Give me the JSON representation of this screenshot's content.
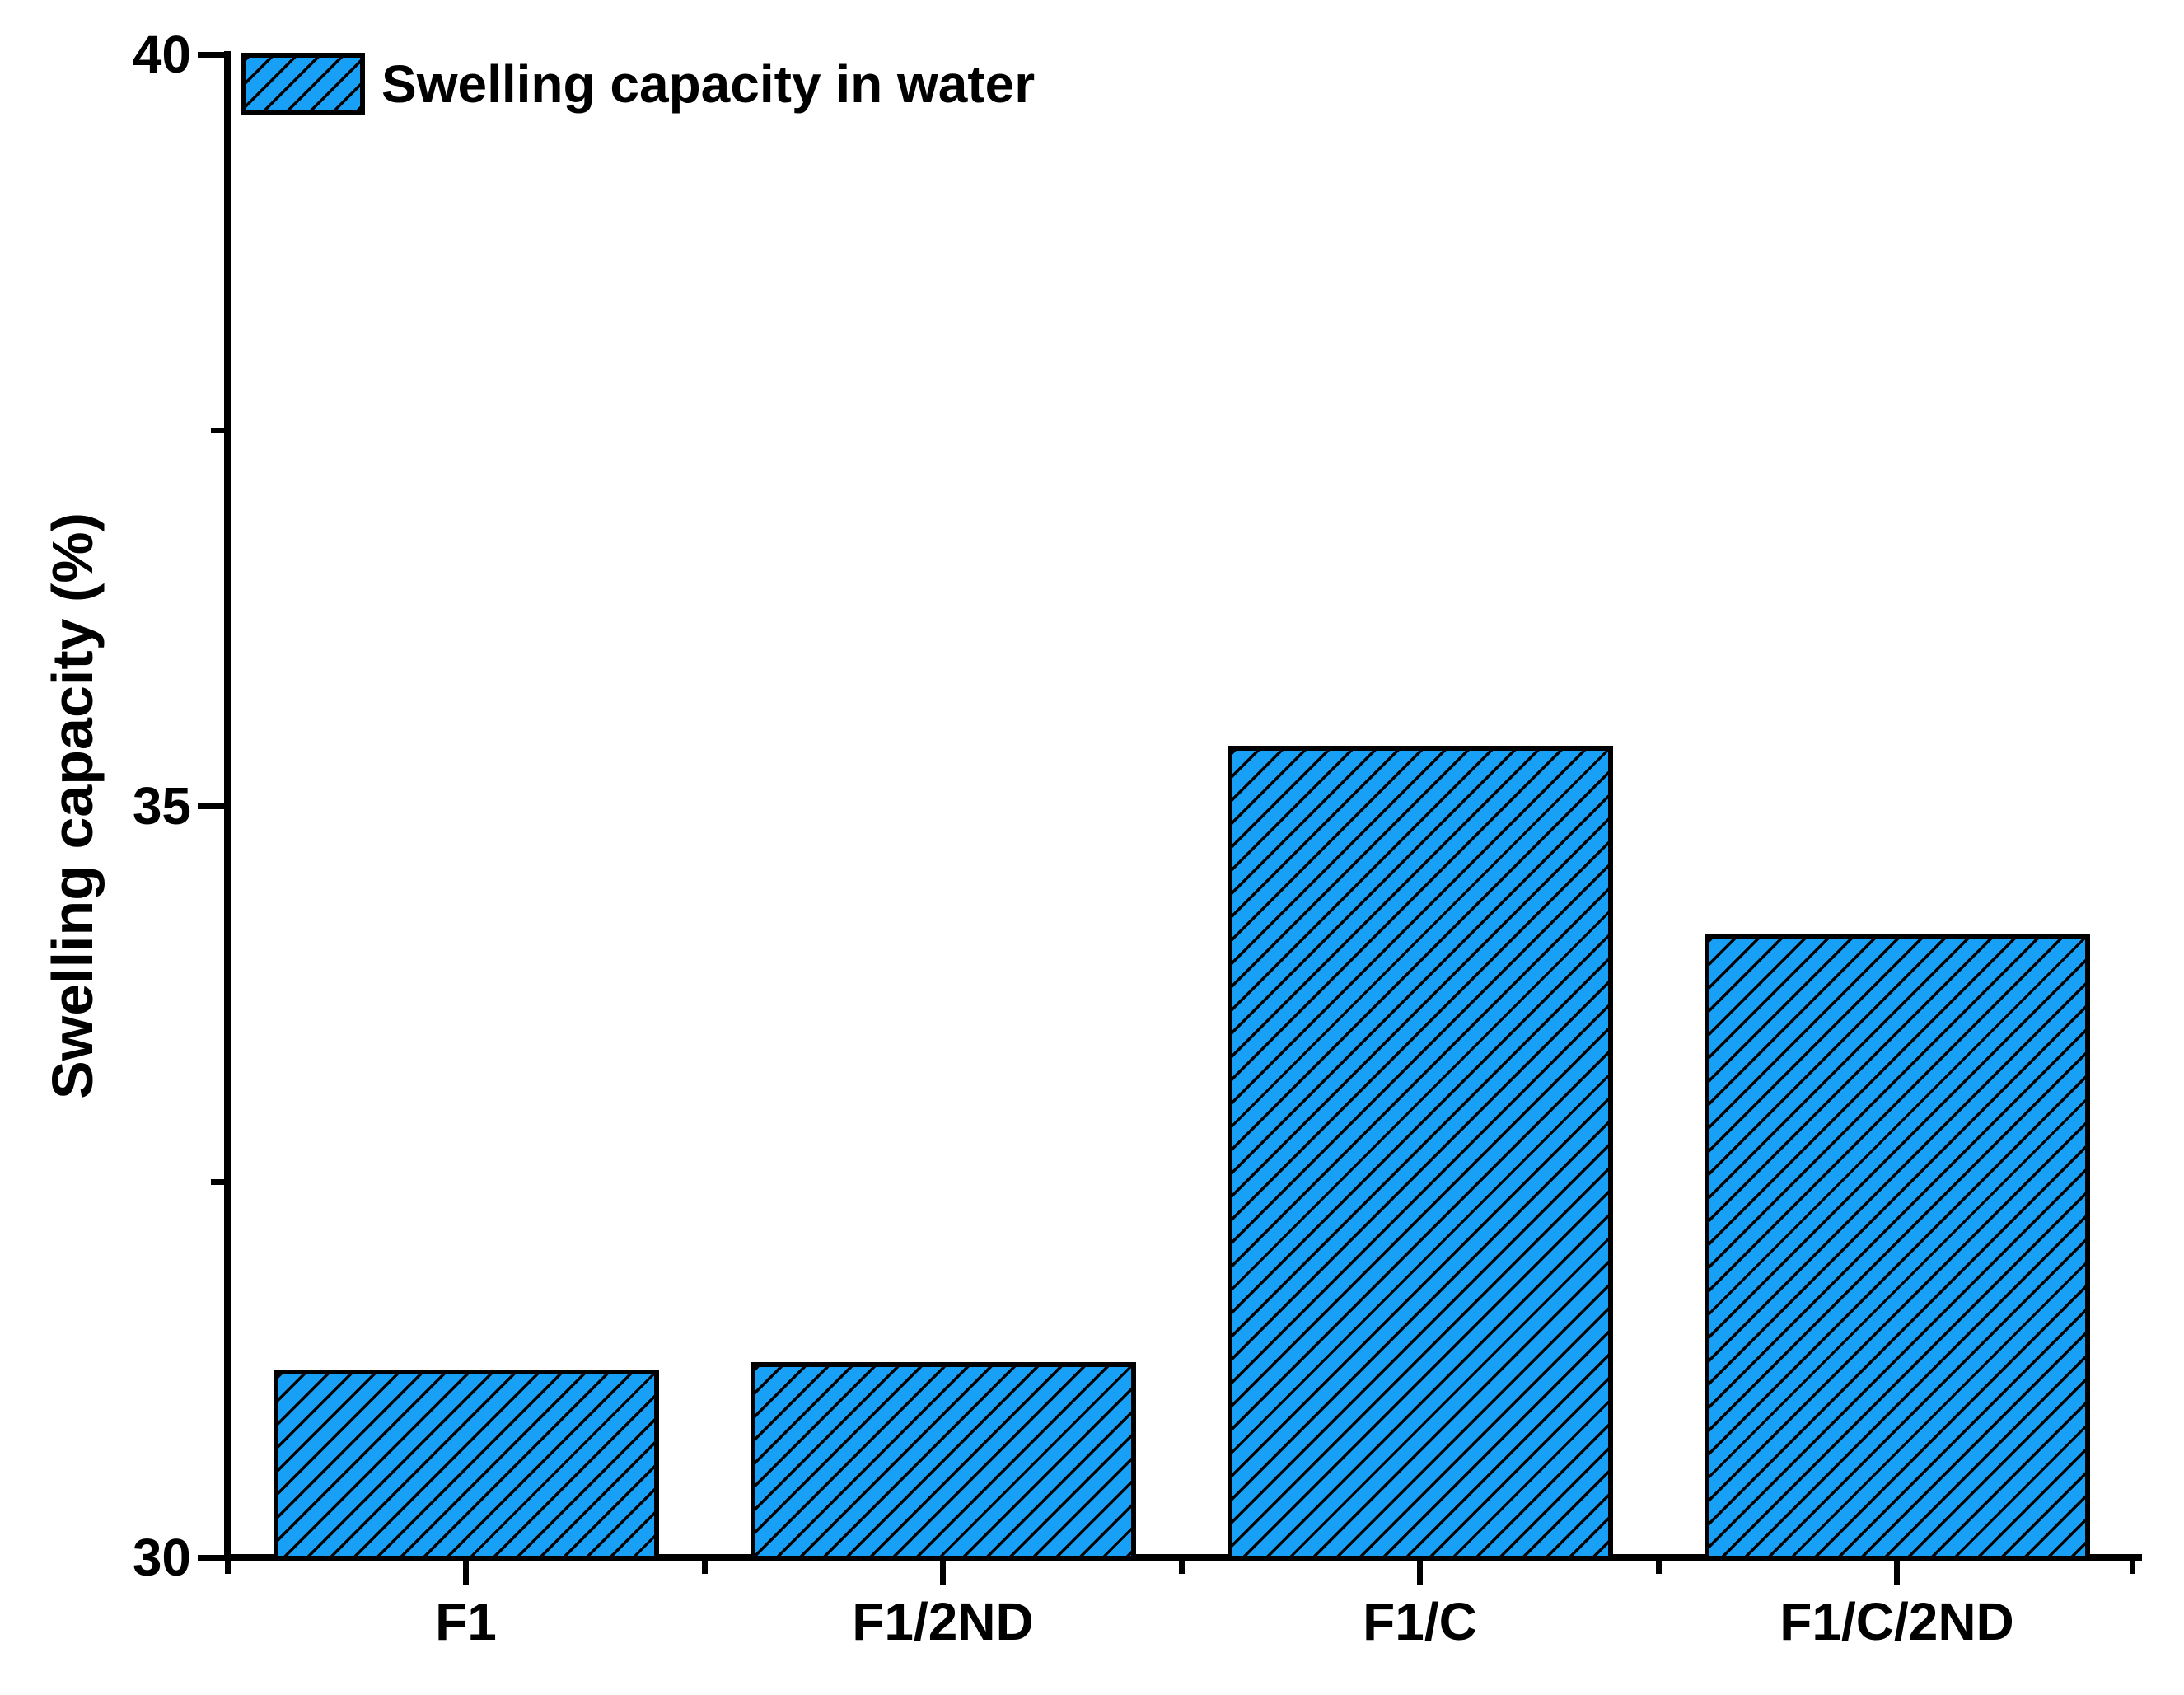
{
  "chart_data": {
    "type": "bar",
    "categories": [
      "F1",
      "F1/2ND",
      "F1/C",
      "F1/C/2ND"
    ],
    "values": [
      31.25,
      31.3,
      35.4,
      34.15
    ],
    "series_name": "Swelling capacity in water",
    "title": "",
    "xlabel": "",
    "ylabel": "Swelling capacity (%)",
    "ylim": [
      30,
      40
    ],
    "yticks": [
      30,
      35,
      40
    ],
    "ytick_labels": [
      "30",
      "35",
      "40"
    ],
    "yticks_minor": [
      32.5,
      37.5
    ],
    "grid": false,
    "legend_position": "top-left",
    "bar_fill_color": "#18A0F6",
    "bar_border_color": "#000000",
    "hatch_style": "forward-diagonal",
    "axis_color": "#000000"
  },
  "legend": {
    "label": "Swelling capacity in water"
  },
  "y_axis": {
    "title": "Swelling capacity (%)"
  }
}
